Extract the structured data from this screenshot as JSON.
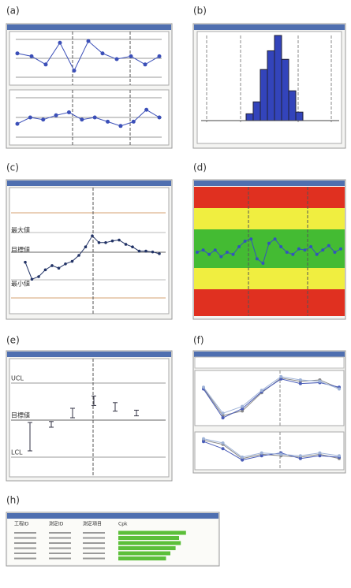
{
  "panels": [
    {
      "label": "(a)",
      "charts": [
        {
          "ylim": [
            0,
            100
          ],
          "values": [
            62,
            55,
            35,
            88,
            20,
            92,
            62,
            48,
            55,
            35,
            55
          ]
        },
        {
          "ylim": [
            0,
            100
          ],
          "values": [
            35,
            50,
            45,
            55,
            62,
            45,
            50,
            40,
            30,
            40,
            68,
            50
          ]
        }
      ]
    },
    {
      "label": "(b)",
      "ylim": [
        0,
        100
      ],
      "values": [
        8,
        22,
        60,
        82,
        100,
        72,
        35,
        10
      ]
    },
    {
      "label": "(c)",
      "upper": "最大値",
      "target": "目標値",
      "lower": "最小値",
      "ylim": [
        0,
        100
      ],
      "values": [
        42,
        22,
        25,
        33,
        38,
        35,
        40,
        43,
        50,
        60,
        73,
        65,
        65,
        67,
        68,
        63,
        60,
        55,
        55,
        54,
        52
      ]
    },
    {
      "label": "(d)",
      "ylim": [
        0,
        100
      ],
      "values": [
        50,
        52,
        48,
        52,
        46,
        50,
        48,
        55,
        60,
        62,
        44,
        40,
        58,
        62,
        55,
        50,
        48,
        53,
        52,
        55,
        48,
        52,
        56,
        50,
        53
      ]
    },
    {
      "label": "(e)",
      "upper": "UCL",
      "target": "目標値",
      "lower": "LCL",
      "ylim": [
        0,
        100
      ],
      "ranges": [
        [
          15,
          45
        ],
        [
          40,
          46
        ],
        [
          50,
          60
        ],
        [
          63,
          73
        ],
        [
          57,
          66
        ],
        [
          52,
          58
        ]
      ]
    },
    {
      "label": "(f)",
      "charts": [
        {
          "ylim": [
            0,
            100
          ],
          "series": [
            {
              "color": "#888888",
              "values": [
                70,
                10,
                20,
                60,
                92,
                85,
                88,
                70
              ]
            },
            {
              "color": "#4a5db8",
              "values": [
                68,
                5,
                25,
                62,
                90,
                80,
                82,
                72
              ]
            },
            {
              "color": "#9fb3d8",
              "values": [
                72,
                15,
                30,
                65,
                95,
                88,
                85,
                68
              ]
            }
          ]
        },
        {
          "ylim": [
            0,
            100
          ],
          "series": [
            {
              "color": "#888888",
              "values": [
                85,
                70,
                20,
                35,
                30,
                25,
                35,
                20
              ]
            },
            {
              "color": "#4a5db8",
              "values": [
                80,
                55,
                15,
                30,
                40,
                20,
                30,
                25
              ]
            },
            {
              "color": "#9fb3d8",
              "values": [
                90,
                75,
                25,
                40,
                35,
                30,
                40,
                30
              ]
            }
          ]
        }
      ]
    },
    {
      "label": "(h)",
      "headers": [
        "工程ID",
        "測定ID",
        "測定項目",
        "Cpk"
      ],
      "ylim": [
        0,
        100
      ],
      "values": [
        78,
        70,
        72,
        66,
        60,
        55
      ]
    }
  ]
}
